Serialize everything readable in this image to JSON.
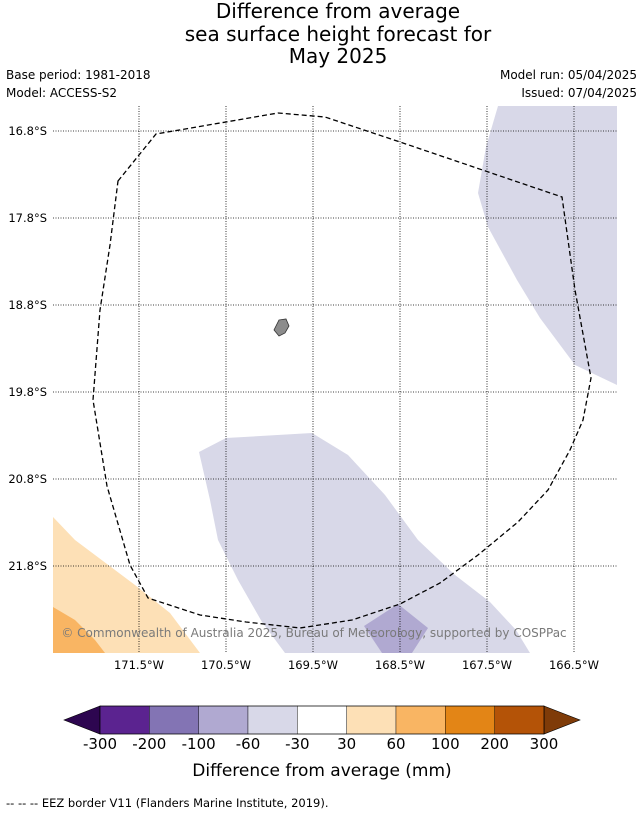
{
  "title": {
    "line1": "Difference from average",
    "line2": "sea surface height forecast for",
    "line3": "May 2025"
  },
  "meta": {
    "base_period": "Base period: 1981-2018",
    "model": "Model: ACCESS-S2",
    "model_run": "Model run: 05/04/2025",
    "issued": "Issued: 07/04/2025"
  },
  "map": {
    "latitude_labels": [
      "16.8°S",
      "17.8°S",
      "18.8°S",
      "19.8°S",
      "20.8°S",
      "21.8°S"
    ],
    "longitude_labels": [
      "171.5°W",
      "170.5°W",
      "169.5°W",
      "168.5°W",
      "167.5°W",
      "166.5°W"
    ],
    "copyright": "© Commonwealth of Australia 2025, Bureau of Meteorology, supported by COSPPac",
    "colors": {
      "land": "#8c8c8c",
      "neg_30_60": "#d8d8e8",
      "neg_60_100": "#b0a9d1",
      "pos_30_60": "#fde0b6",
      "pos_60_100": "#f9b563"
    }
  },
  "colorbar": {
    "label": "Difference from average (mm)",
    "ticks": [
      "-300",
      "-200",
      "-100",
      "-60",
      "-30",
      "30",
      "60",
      "100",
      "200",
      "300"
    ],
    "colors": [
      "#5b2390",
      "#8374b4",
      "#b0a9d1",
      "#d8d8e8",
      "#ffffff",
      "#fde0b6",
      "#f9b563",
      "#e38516",
      "#b45307"
    ],
    "under_color": "#2d0650",
    "over_color": "#7f3b08"
  },
  "footnote": "--  --  -- EEZ border V11 (Flanders Marine Institute, 2019)."
}
